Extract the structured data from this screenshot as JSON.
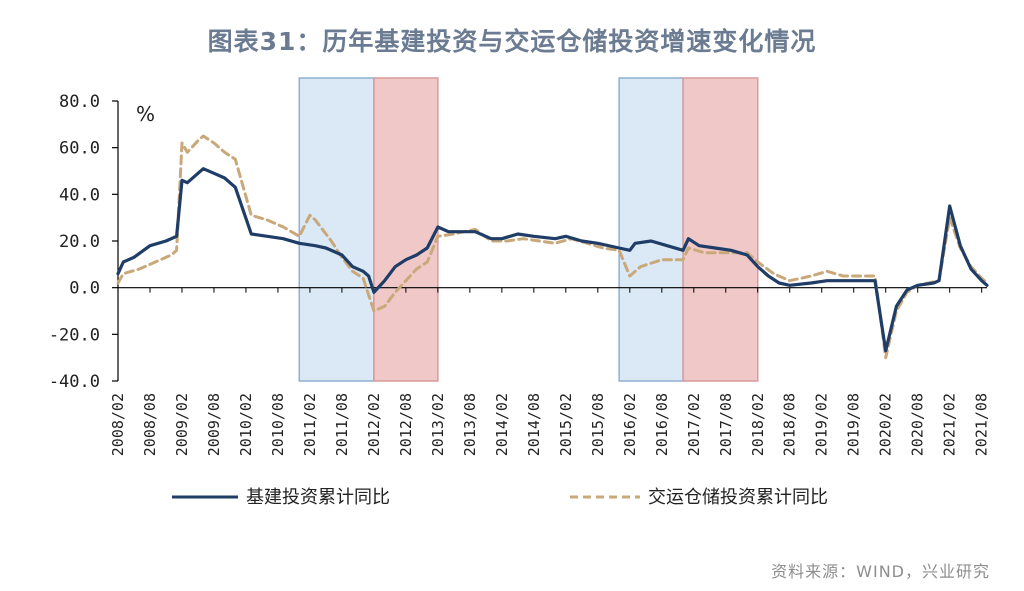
{
  "title": "图表31：历年基建投资与交运仓储投资增速变化情况",
  "source": "资料来源：WIND，兴业研究",
  "colors": {
    "infra_line": "#1f3d66",
    "transport_line": "#c9a87a",
    "band_blue": "#dbe8f5",
    "band_red": "#f0c8c8",
    "band_blue_edge": "#8fb0d3",
    "band_red_edge": "#d99a9a"
  },
  "chart_data": {
    "type": "line",
    "title": "图表31：历年基建投资与交运仓储投资增速变化情况",
    "unit_label": "%",
    "xlabel": "",
    "ylabel": "",
    "ylim": [
      -40,
      80
    ],
    "y_ticks": [
      "80.0",
      "60.0",
      "40.0",
      "20.0",
      "0.0",
      "-20.0",
      "-40.0"
    ],
    "x_tick_labels": [
      "2008/02",
      "2008/08",
      "2009/02",
      "2009/08",
      "2010/02",
      "2010/08",
      "2011/02",
      "2011/08",
      "2012/02",
      "2012/08",
      "2013/02",
      "2013/08",
      "2014/02",
      "2014/08",
      "2015/02",
      "2015/08",
      "2016/02",
      "2016/08",
      "2017/02",
      "2017/08",
      "2018/02",
      "2018/08",
      "2019/02",
      "2019/08",
      "2020/02",
      "2020/08",
      "2021/02",
      "2021/08"
    ],
    "legend_position": "bottom",
    "shaded_periods": [
      {
        "start": "2010/12",
        "end": "2012/02",
        "color": "blue"
      },
      {
        "start": "2012/02",
        "end": "2013/02",
        "color": "red"
      },
      {
        "start": "2015/12",
        "end": "2016/12",
        "color": "blue"
      },
      {
        "start": "2016/12",
        "end": "2018/02",
        "color": "red"
      }
    ],
    "series": [
      {
        "name": "基建投资累计同比",
        "style": "solid",
        "points": [
          [
            "2008/02",
            6
          ],
          [
            "2008/03",
            11
          ],
          [
            "2008/05",
            13
          ],
          [
            "2008/08",
            18
          ],
          [
            "2008/11",
            20
          ],
          [
            "2009/01",
            22
          ],
          [
            "2009/02",
            46
          ],
          [
            "2009/03",
            45
          ],
          [
            "2009/05",
            49
          ],
          [
            "2009/06",
            51
          ],
          [
            "2009/08",
            49
          ],
          [
            "2009/10",
            47
          ],
          [
            "2009/12",
            43
          ],
          [
            "2010/03",
            23
          ],
          [
            "2010/06",
            22
          ],
          [
            "2010/09",
            21
          ],
          [
            "2010/12",
            19
          ],
          [
            "2011/03",
            18
          ],
          [
            "2011/05",
            17
          ],
          [
            "2011/08",
            14
          ],
          [
            "2011/10",
            9
          ],
          [
            "2011/12",
            7
          ],
          [
            "2012/01",
            5
          ],
          [
            "2012/02",
            -2
          ],
          [
            "2012/04",
            3
          ],
          [
            "2012/06",
            9
          ],
          [
            "2012/08",
            12
          ],
          [
            "2012/10",
            14
          ],
          [
            "2012/12",
            17
          ],
          [
            "2013/02",
            26
          ],
          [
            "2013/04",
            24
          ],
          [
            "2013/06",
            24
          ],
          [
            "2013/09",
            24
          ],
          [
            "2013/12",
            21
          ],
          [
            "2014/02",
            21
          ],
          [
            "2014/05",
            23
          ],
          [
            "2014/08",
            22
          ],
          [
            "2014/12",
            21
          ],
          [
            "2015/02",
            22
          ],
          [
            "2015/05",
            20
          ],
          [
            "2015/08",
            19
          ],
          [
            "2015/12",
            17
          ],
          [
            "2016/02",
            16
          ],
          [
            "2016/03",
            19
          ],
          [
            "2016/06",
            20
          ],
          [
            "2016/09",
            18
          ],
          [
            "2016/12",
            16
          ],
          [
            "2017/01",
            21
          ],
          [
            "2017/03",
            18
          ],
          [
            "2017/06",
            17
          ],
          [
            "2017/09",
            16
          ],
          [
            "2017/12",
            14
          ],
          [
            "2018/02",
            9
          ],
          [
            "2018/04",
            5
          ],
          [
            "2018/06",
            2
          ],
          [
            "2018/08",
            1
          ],
          [
            "2018/12",
            2
          ],
          [
            "2019/03",
            3
          ],
          [
            "2019/06",
            3
          ],
          [
            "2019/09",
            3
          ],
          [
            "2019/12",
            3
          ],
          [
            "2020/02",
            -27
          ],
          [
            "2020/04",
            -8
          ],
          [
            "2020/06",
            -1
          ],
          [
            "2020/08",
            1
          ],
          [
            "2020/11",
            2
          ],
          [
            "2020/12",
            3
          ],
          [
            "2021/02",
            35
          ],
          [
            "2021/04",
            18
          ],
          [
            "2021/06",
            8
          ],
          [
            "2021/08",
            3
          ],
          [
            "2021/09",
            1
          ]
        ]
      },
      {
        "name": "交运仓储投资累计同比",
        "style": "dashed",
        "points": [
          [
            "2008/02",
            2
          ],
          [
            "2008/03",
            6
          ],
          [
            "2008/06",
            8
          ],
          [
            "2008/09",
            11
          ],
          [
            "2008/12",
            14
          ],
          [
            "2009/01",
            16
          ],
          [
            "2009/02",
            62
          ],
          [
            "2009/03",
            58
          ],
          [
            "2009/05",
            63
          ],
          [
            "2009/06",
            65
          ],
          [
            "2009/08",
            62
          ],
          [
            "2009/10",
            58
          ],
          [
            "2009/12",
            55
          ],
          [
            "2010/03",
            31
          ],
          [
            "2010/06",
            29
          ],
          [
            "2010/09",
            26
          ],
          [
            "2010/12",
            22
          ],
          [
            "2011/02",
            31
          ],
          [
            "2011/03",
            29
          ],
          [
            "2011/06",
            20
          ],
          [
            "2011/08",
            13
          ],
          [
            "2011/10",
            7
          ],
          [
            "2011/12",
            4
          ],
          [
            "2012/02",
            -10
          ],
          [
            "2012/04",
            -8
          ],
          [
            "2012/06",
            -2
          ],
          [
            "2012/08",
            3
          ],
          [
            "2012/10",
            8
          ],
          [
            "2012/12",
            11
          ],
          [
            "2013/02",
            22
          ],
          [
            "2013/05",
            23
          ],
          [
            "2013/09",
            25
          ],
          [
            "2013/12",
            20
          ],
          [
            "2014/03",
            20
          ],
          [
            "2014/06",
            21
          ],
          [
            "2014/09",
            20
          ],
          [
            "2014/12",
            19
          ],
          [
            "2015/03",
            21
          ],
          [
            "2015/06",
            19
          ],
          [
            "2015/09",
            17
          ],
          [
            "2015/12",
            16
          ],
          [
            "2016/02",
            5
          ],
          [
            "2016/04",
            9
          ],
          [
            "2016/08",
            12
          ],
          [
            "2016/12",
            12
          ],
          [
            "2017/01",
            17
          ],
          [
            "2017/04",
            15
          ],
          [
            "2017/08",
            15
          ],
          [
            "2017/12",
            15
          ],
          [
            "2018/02",
            11
          ],
          [
            "2018/05",
            6
          ],
          [
            "2018/08",
            3
          ],
          [
            "2018/12",
            5
          ],
          [
            "2019/03",
            7
          ],
          [
            "2019/06",
            5
          ],
          [
            "2019/12",
            5
          ],
          [
            "2020/02",
            -30
          ],
          [
            "2020/04",
            -10
          ],
          [
            "2020/06",
            -2
          ],
          [
            "2020/08",
            1
          ],
          [
            "2020/12",
            3
          ],
          [
            "2021/02",
            30
          ],
          [
            "2021/04",
            17
          ],
          [
            "2021/06",
            9
          ],
          [
            "2021/08",
            4
          ],
          [
            "2021/09",
            2
          ]
        ]
      }
    ]
  }
}
